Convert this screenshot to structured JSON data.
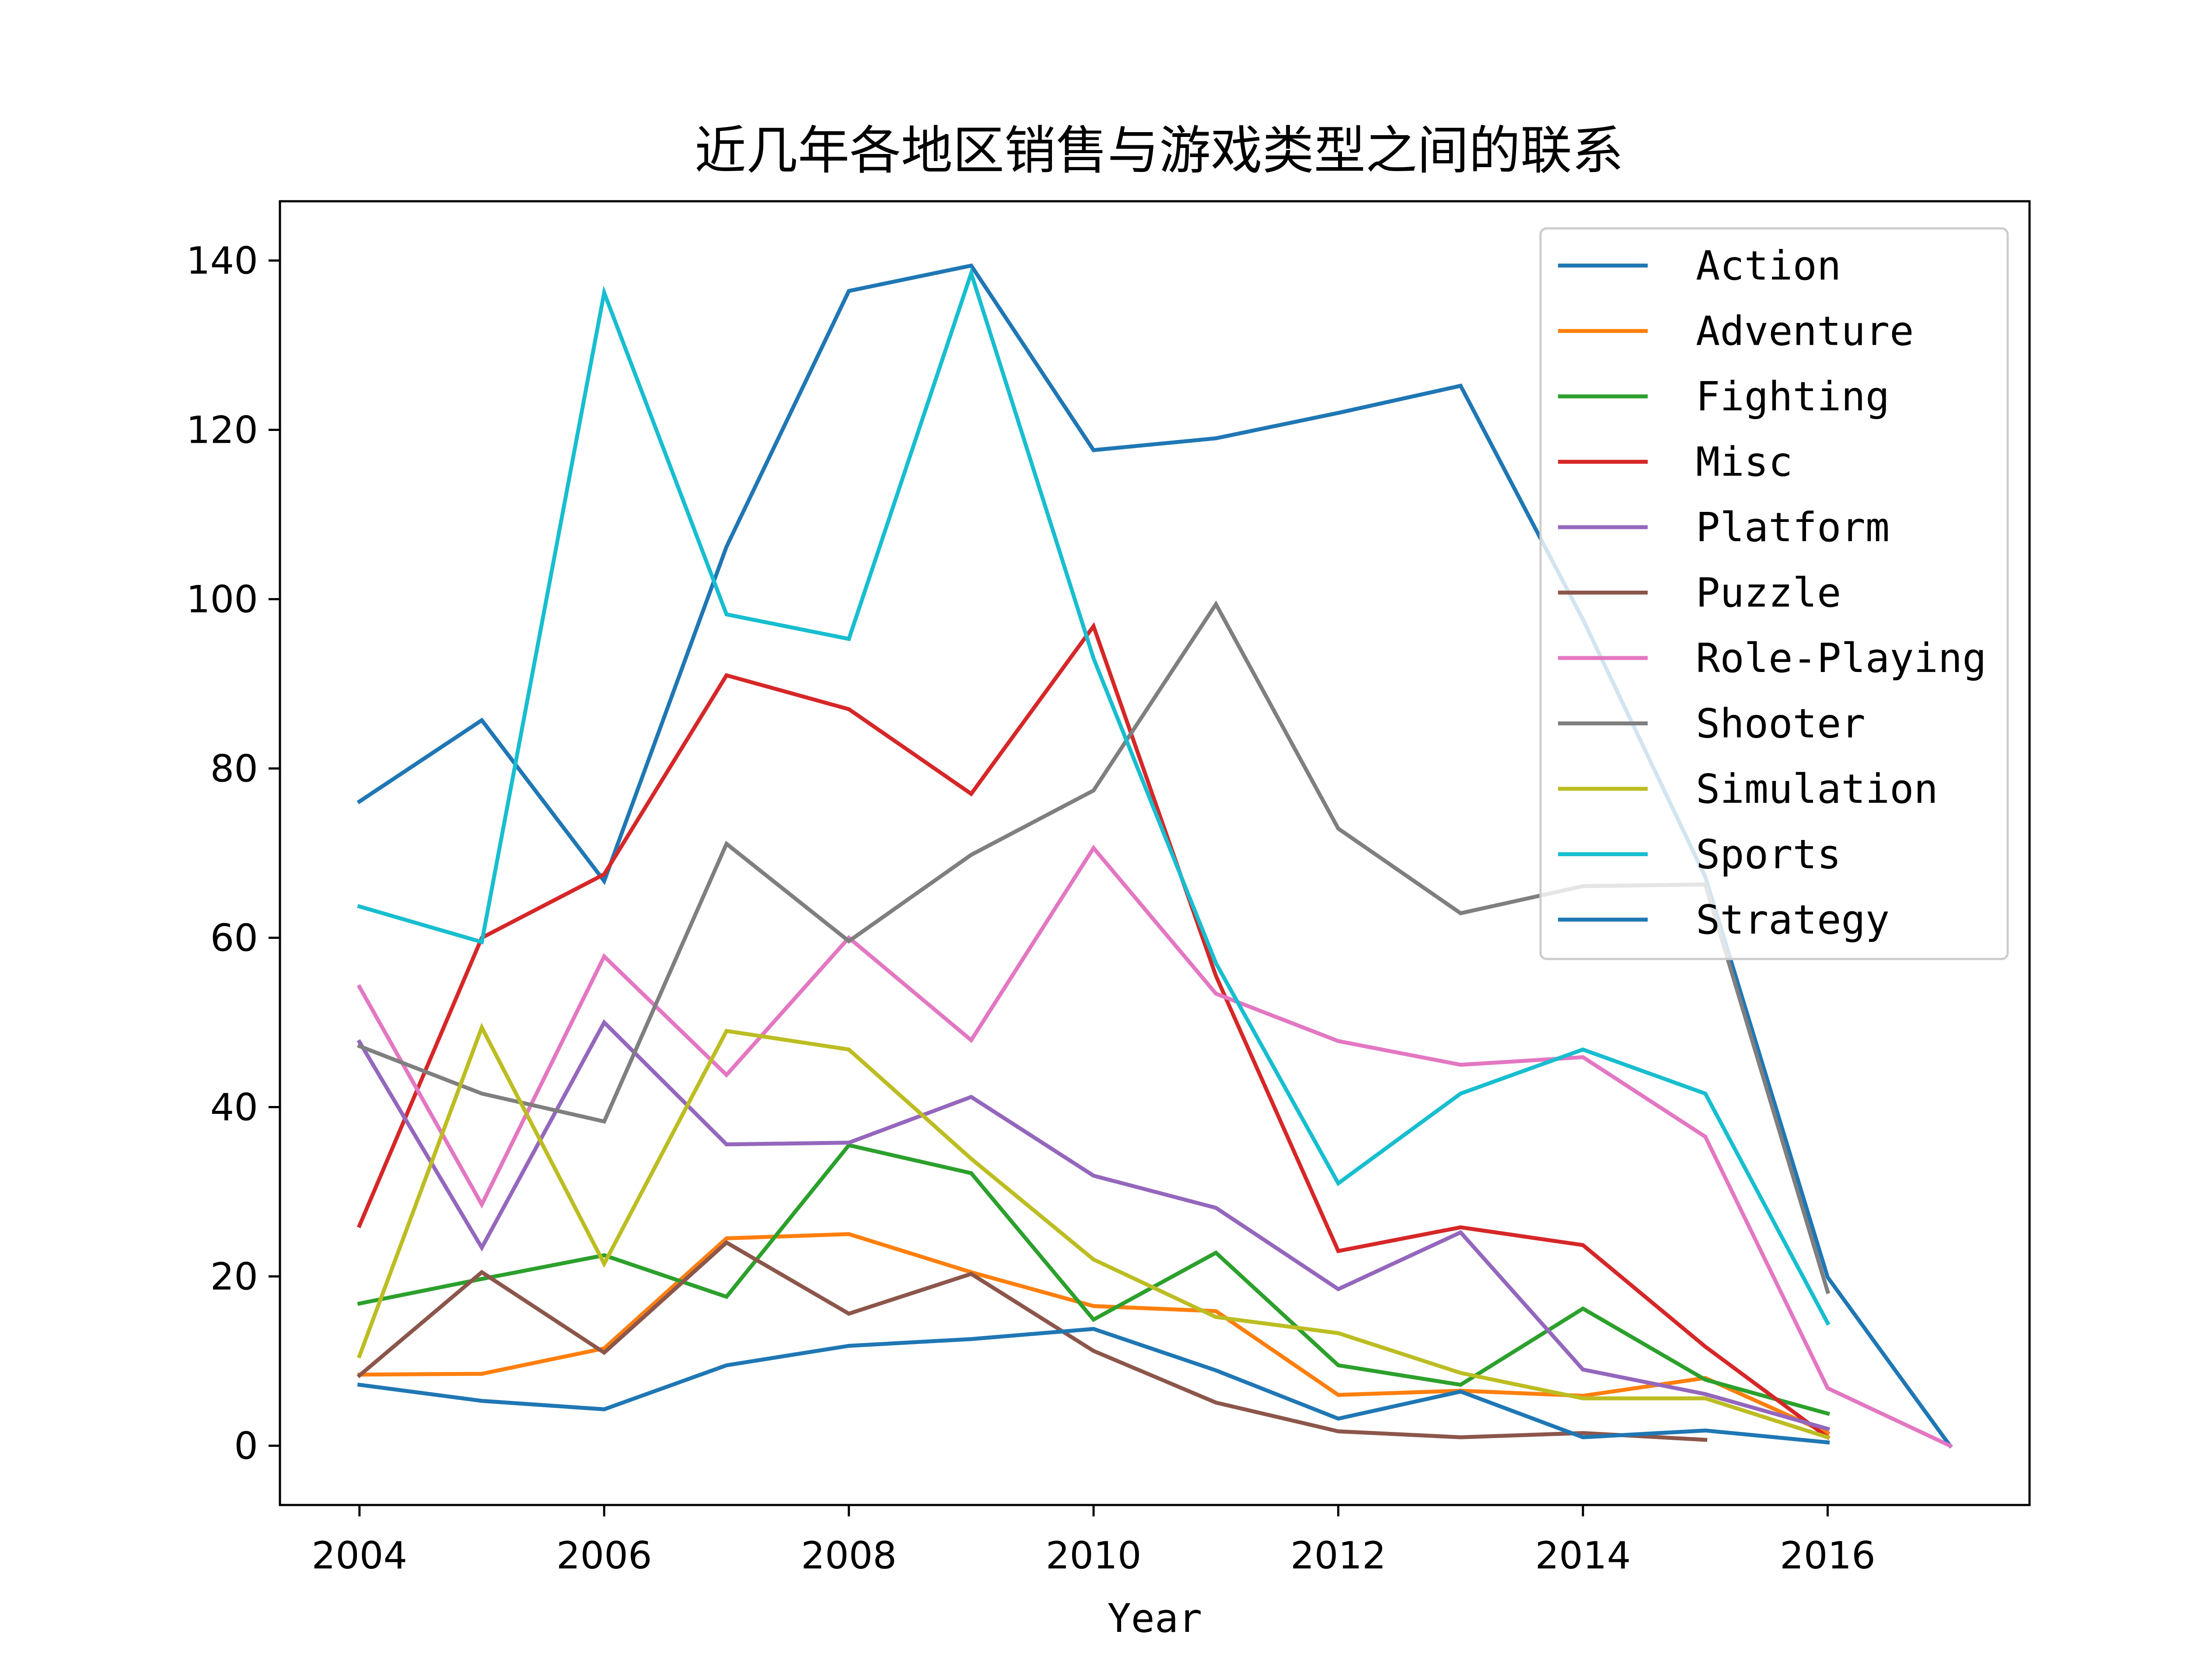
{
  "chart_data": {
    "type": "line",
    "title": "近几年各地区销售与游戏类型之间的联系",
    "xlabel": "Year",
    "ylabel": "",
    "xlim": [
      2003.35,
      2017.65
    ],
    "ylim": [
      -7,
      147
    ],
    "xticks": [
      "2004",
      "2006",
      "2008",
      "2010",
      "2012",
      "2014",
      "2016"
    ],
    "yticks": [
      "0",
      "20",
      "40",
      "60",
      "80",
      "100",
      "120",
      "140"
    ],
    "grid": false,
    "legend_position": "upper right",
    "series": [
      {
        "name": "Action",
        "color": "#1f77b4",
        "x": [
          2004,
          2005,
          2006,
          2007,
          2008,
          2009,
          2010,
          2011,
          2012,
          2013,
          2014,
          2015,
          2016,
          2017
        ],
        "y": [
          76.1,
          85.7,
          66.7,
          106.2,
          136.4,
          139.4,
          117.6,
          119.0,
          122.0,
          125.2,
          97.6,
          67.2,
          19.9,
          0.0
        ]
      },
      {
        "name": "Adventure",
        "color": "#ff7f0e",
        "x": [
          2004,
          2005,
          2006,
          2007,
          2008,
          2009,
          2010,
          2011,
          2012,
          2013,
          2014,
          2015,
          2016
        ],
        "y": [
          8.4,
          8.5,
          11.5,
          24.5,
          25.0,
          20.5,
          16.5,
          15.9,
          6.0,
          6.5,
          5.9,
          8.0,
          1.5
        ]
      },
      {
        "name": "Fighting",
        "color": "#2ca02c",
        "x": [
          2004,
          2005,
          2006,
          2007,
          2008,
          2009,
          2010,
          2011,
          2012,
          2013,
          2014,
          2015,
          2016
        ],
        "y": [
          16.8,
          19.7,
          22.5,
          17.6,
          35.5,
          32.2,
          14.9,
          22.8,
          9.5,
          7.2,
          16.2,
          7.8,
          3.8
        ]
      },
      {
        "name": "Misc",
        "color": "#d62728",
        "x": [
          2004,
          2005,
          2006,
          2007,
          2008,
          2009,
          2010,
          2011,
          2012,
          2013,
          2014,
          2015,
          2016
        ],
        "y": [
          26.0,
          60.0,
          67.5,
          91.0,
          87.0,
          77.0,
          96.8,
          55.5,
          23.0,
          25.8,
          23.7,
          11.7,
          1.0
        ]
      },
      {
        "name": "Platform",
        "color": "#9467bd",
        "x": [
          2004,
          2005,
          2006,
          2007,
          2008,
          2009,
          2010,
          2011,
          2012,
          2013,
          2014,
          2015,
          2016
        ],
        "y": [
          47.7,
          23.4,
          50.0,
          35.6,
          35.8,
          41.2,
          31.9,
          28.1,
          18.5,
          25.2,
          9.0,
          6.1,
          2.0
        ]
      },
      {
        "name": "Puzzle",
        "color": "#8c564b",
        "x": [
          2004,
          2005,
          2006,
          2007,
          2008,
          2009,
          2010,
          2011,
          2012,
          2013,
          2014,
          2015
        ],
        "y": [
          8.3,
          20.5,
          11.0,
          24.0,
          15.6,
          20.3,
          11.2,
          5.1,
          1.7,
          1.0,
          1.5,
          0.7
        ]
      },
      {
        "name": "Role-Playing",
        "color": "#e377c2",
        "x": [
          2004,
          2005,
          2006,
          2007,
          2008,
          2009,
          2010,
          2011,
          2012,
          2013,
          2014,
          2015,
          2016,
          2017
        ],
        "y": [
          54.2,
          28.5,
          57.8,
          43.8,
          60.0,
          47.9,
          70.6,
          53.4,
          47.8,
          45.0,
          45.9,
          36.5,
          6.8,
          0.0
        ]
      },
      {
        "name": "Shooter",
        "color": "#7f7f7f",
        "x": [
          2004,
          2005,
          2006,
          2007,
          2008,
          2009,
          2010,
          2011,
          2012,
          2013,
          2014,
          2015,
          2016
        ],
        "y": [
          47.2,
          41.6,
          38.3,
          71.1,
          59.6,
          69.8,
          77.4,
          99.4,
          72.9,
          62.9,
          66.1,
          66.3,
          18.2
        ]
      },
      {
        "name": "Simulation",
        "color": "#bcbd22",
        "x": [
          2004,
          2005,
          2006,
          2007,
          2008,
          2009,
          2010,
          2011,
          2012,
          2013,
          2014,
          2015,
          2016
        ],
        "y": [
          10.6,
          49.4,
          21.5,
          49.0,
          46.8,
          33.9,
          22.0,
          15.2,
          13.3,
          8.6,
          5.6,
          5.6,
          1.0
        ]
      },
      {
        "name": "Sports",
        "color": "#17becf",
        "x": [
          2004,
          2005,
          2006,
          2007,
          2008,
          2009,
          2010,
          2011,
          2012,
          2013,
          2014,
          2015,
          2016
        ],
        "y": [
          63.7,
          59.5,
          136.2,
          98.2,
          95.3,
          138.5,
          93.0,
          57.0,
          31.0,
          41.6,
          46.8,
          41.6,
          14.5
        ]
      },
      {
        "name": "Strategy",
        "color": "#1f77b4",
        "x": [
          2004,
          2005,
          2006,
          2007,
          2008,
          2009,
          2010,
          2011,
          2012,
          2013,
          2014,
          2015,
          2016
        ],
        "y": [
          7.2,
          5.3,
          4.3,
          9.5,
          11.8,
          12.6,
          13.8,
          8.9,
          3.2,
          6.4,
          1.0,
          1.8,
          0.4
        ]
      }
    ]
  }
}
